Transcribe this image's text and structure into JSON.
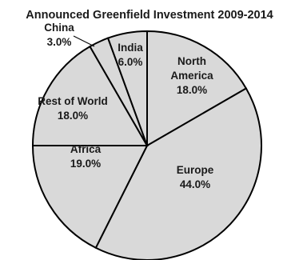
{
  "chart_data": {
    "type": "pie",
    "title": "Announced Greenfield Investment 2009-2014",
    "slices": [
      {
        "label": "North America",
        "value": 18.0,
        "value_label": "18.0%"
      },
      {
        "label": "Europe",
        "value": 44.0,
        "value_label": "44.0%"
      },
      {
        "label": "Africa",
        "value": 19.0,
        "value_label": "19.0%"
      },
      {
        "label": "Rest of World",
        "value": 18.0,
        "value_label": "18.0%"
      },
      {
        "label": "China",
        "value": 3.0,
        "value_label": "3.0%"
      },
      {
        "label": "India",
        "value": 6.0,
        "value_label": "6.0%"
      }
    ],
    "start": "12 o'clock",
    "direction": "clockwise",
    "slice_color": "#d9d9d9",
    "edge_color": "#000000",
    "legend": "none"
  }
}
